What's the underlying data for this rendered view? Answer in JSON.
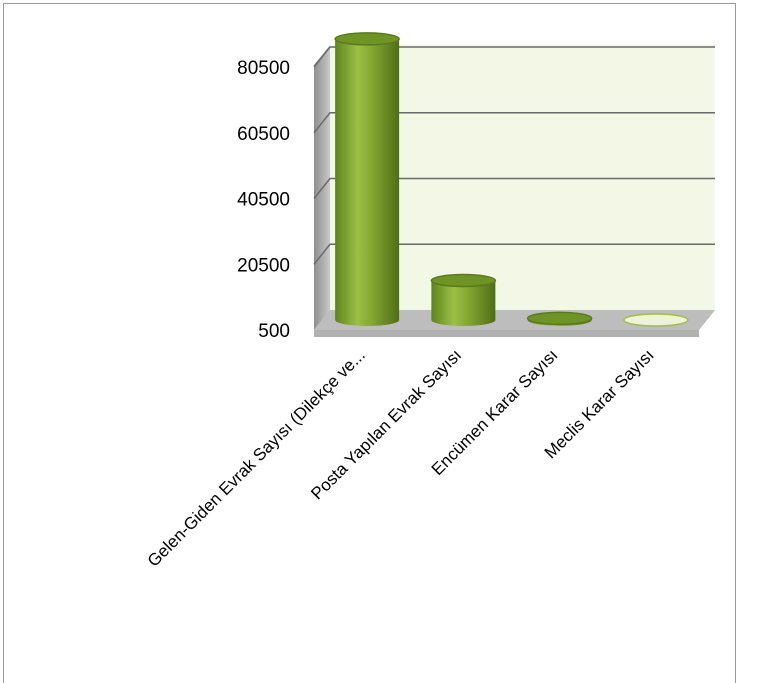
{
  "chart_data": {
    "type": "bar",
    "style": "3d-cylinder",
    "title": "",
    "xlabel": "",
    "ylabel": "",
    "categories": [
      "Gelen-Giden Evrak Sayısı (Dilekçe ve...",
      "Posta Yapılan Evrak Sayısı",
      "Encümen Karar Sayısı",
      "Meclis Karar Sayısı"
    ],
    "values": [
      86000,
      12500,
      1000,
      500
    ],
    "ylim": [
      500,
      80500
    ],
    "yticks": [
      "500",
      "20500",
      "40500",
      "60500",
      "80500"
    ],
    "grid": true,
    "legend": "none",
    "colors": {
      "bar": "#7ea12e",
      "bar_dark": "#5a7a1e",
      "bar_light": "#b5d35a",
      "wall": "#f3f7e6",
      "side_wall": "#9a9a9a",
      "floor": "#b0b0b0",
      "gridline": "#6a6a6a"
    }
  }
}
